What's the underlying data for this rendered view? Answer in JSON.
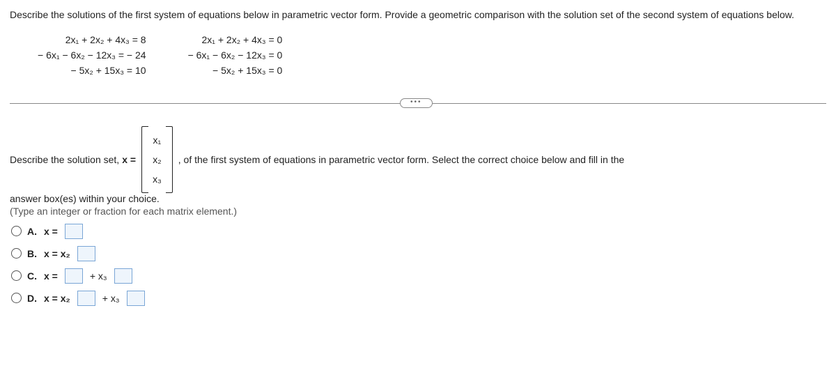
{
  "question": "Describe the solutions of the first system of equations below in parametric vector form. Provide a geometric comparison with the solution set of the second system of equations below.",
  "system1": {
    "eq1": "2x₁ + 2x₂ + 4x₃ = 8",
    "eq2": "− 6x₁ − 6x₂ − 12x₃ = − 24",
    "eq3": "− 5x₂ + 15x₃ = 10"
  },
  "system2": {
    "eq1": "2x₁ + 2x₂ + 4x₃ = 0",
    "eq2": "− 6x₁ − 6x₂ − 12x₃ = 0",
    "eq3": "− 5x₂ + 15x₃ = 0"
  },
  "ellipsis": "•••",
  "prompt_pre": "Describe the solution set, ",
  "prompt_x_eq": "x =",
  "vec": {
    "r1": "x₁",
    "r2": "x₂",
    "r3": "x₃"
  },
  "prompt_post": ", of the first system of equations in parametric vector form. Select the correct choice below and fill in the",
  "prompt_line2": "answer box(es) within your choice.",
  "hint": "(Type an integer or fraction for each matrix element.)",
  "choices": {
    "A": {
      "label": "A.",
      "pre": "x ="
    },
    "B": {
      "label": "B.",
      "pre": "x = x₂"
    },
    "C": {
      "label": "C.",
      "pre": "x =",
      "mid": "+ x₃"
    },
    "D": {
      "label": "D.",
      "pre": "x = x₂",
      "mid": "+ x₃"
    }
  },
  "colors": {
    "text": "#222",
    "divider": "#888",
    "fill_border": "#7aa6d6",
    "fill_bg": "#eef5fc"
  }
}
